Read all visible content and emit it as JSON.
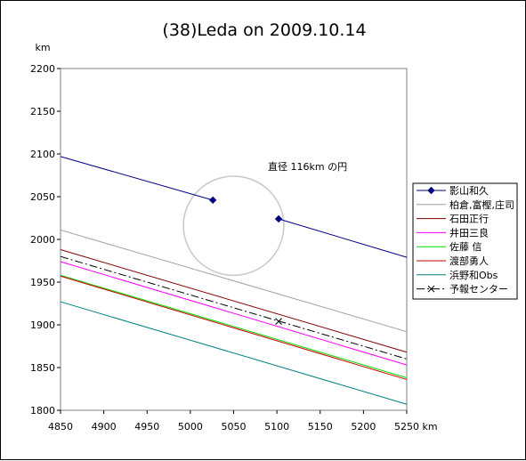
{
  "chart_data": {
    "type": "line",
    "title": "(38)Leda on 2009.10.14",
    "xlabel": "km",
    "ylabel": "km",
    "xlim": [
      4850,
      5250
    ],
    "ylim": [
      1800,
      2200
    ],
    "x_ticks": [
      4850,
      4900,
      4950,
      5000,
      5050,
      5100,
      5150,
      5200,
      5250
    ],
    "y_ticks": [
      1800,
      1850,
      1900,
      1950,
      2000,
      2050,
      2100,
      2150,
      2200
    ],
    "x_tick_labels": [
      "4850",
      "4900",
      "4950",
      "5000",
      "5050",
      "5100",
      "5150",
      "5200",
      "5250"
    ],
    "y_tick_labels": [
      "1800",
      "1850",
      "1900",
      "1950",
      "2000",
      "2050",
      "2100",
      "2150",
      "2200"
    ],
    "grid": false,
    "legend_position": "right",
    "annotation": "直径 116km の円",
    "circle": {
      "center": [
        5050,
        2016
      ],
      "diameter": 116,
      "color": "#c8c8c8"
    },
    "series": [
      {
        "name": "影山和久",
        "color": "#000080",
        "style": "solid",
        "marker": "diamond",
        "segments": [
          [
            [
              4850,
              2097
            ],
            [
              5026,
              2046
            ]
          ],
          [
            [
              5102,
              2024
            ],
            [
              5250,
              1979
            ]
          ]
        ],
        "points": [
          [
            5026,
            2046
          ],
          [
            5102,
            2024
          ]
        ]
      },
      {
        "name": "柏倉,富樫,庄司",
        "color": "#a0a0a0",
        "style": "solid",
        "segments": [
          [
            [
              4850,
              2011
            ],
            [
              5250,
              1892
            ]
          ]
        ]
      },
      {
        "name": "石田正行",
        "color": "#800000",
        "style": "solid",
        "segments": [
          [
            [
              4850,
              1988
            ],
            [
              5250,
              1868
            ]
          ]
        ]
      },
      {
        "name": "井田三良",
        "color": "#ff00ff",
        "style": "solid",
        "segments": [
          [
            [
              4850,
              1974
            ],
            [
              5250,
              1853
            ]
          ]
        ]
      },
      {
        "name": "佐藤 信",
        "color": "#00dd00",
        "style": "solid",
        "segments": [
          [
            [
              4850,
              1958
            ],
            [
              5250,
              1838
            ]
          ]
        ]
      },
      {
        "name": "渡部勇人",
        "color": "#cc0000",
        "style": "solid",
        "segments": [
          [
            [
              4850,
              1957
            ],
            [
              5250,
              1836
            ]
          ]
        ]
      },
      {
        "name": "浜野和Obs",
        "color": "#008080",
        "style": "solid",
        "segments": [
          [
            [
              4850,
              1927
            ],
            [
              5250,
              1807
            ]
          ]
        ]
      },
      {
        "name": "予報センター",
        "color": "#000000",
        "style": "dashdot",
        "marker": "x",
        "segments": [
          [
            [
              4850,
              1980
            ],
            [
              5250,
              1860
            ]
          ]
        ],
        "points": [
          [
            5102,
            1904
          ]
        ]
      }
    ]
  }
}
